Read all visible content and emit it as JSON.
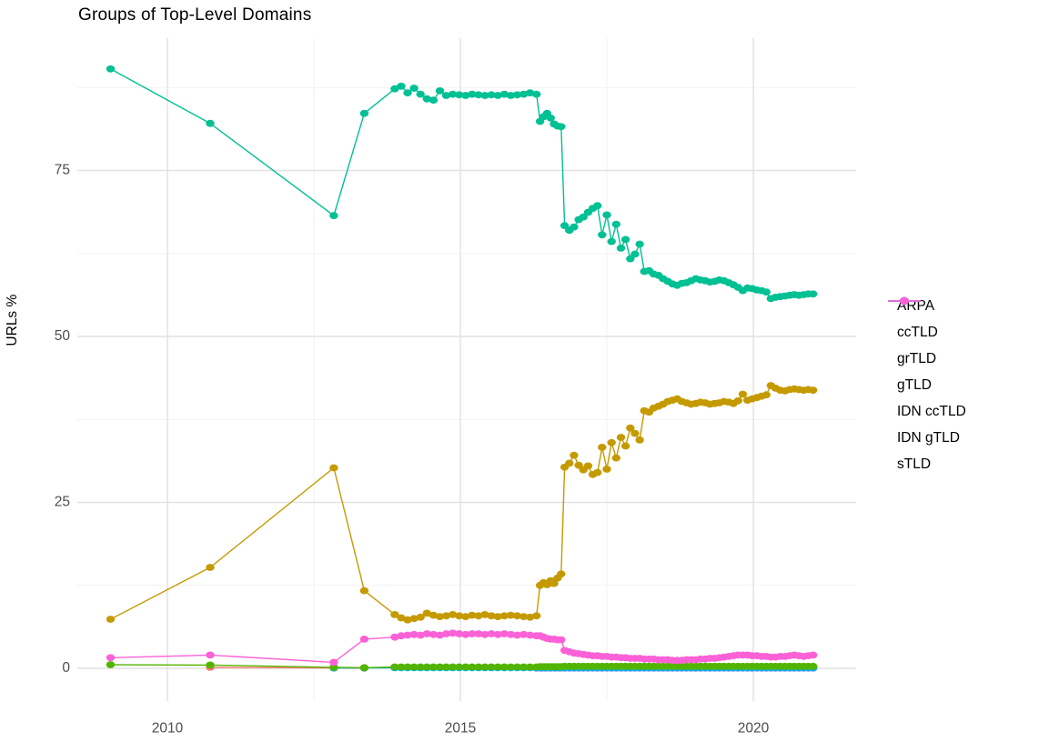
{
  "chart_data": {
    "type": "scatter",
    "title": "Groups of Top-Level Domains",
    "xlabel": "",
    "ylabel": "URLs %",
    "x_ticks": [
      "2010",
      "2015",
      "2020"
    ],
    "x_tick_values": [
      2010,
      2015,
      2020
    ],
    "x_minor_ticks": [
      2012.5,
      2017.5
    ],
    "y_ticks": [
      "0",
      "25",
      "50",
      "75"
    ],
    "y_tick_values": [
      0,
      25,
      50,
      75
    ],
    "y_minor_ticks": [
      12.5,
      37.5,
      62.5,
      87.5
    ],
    "x_range": [
      2008.5,
      2021.75
    ],
    "y_range": [
      -5,
      93.5
    ],
    "grid": true,
    "legend_position": "right",
    "series": [
      {
        "name": "ARPA",
        "slug": "arpa",
        "color": "#F8766D",
        "z": 1,
        "segments": [
          {
            "points": [
              [
                2010.73,
                0.15
              ],
              [
                2012.84,
                0.05
              ],
              [
                2013.36,
                0.03
              ]
            ]
          }
        ]
      },
      {
        "name": "ccTLD",
        "slug": "cctld",
        "color": "#C49A00",
        "z": 6,
        "segments": [
          {
            "points": [
              [
                2009.03,
                7.4
              ],
              [
                2010.73,
                15.2
              ],
              [
                2012.84,
                30.2
              ],
              [
                2013.36,
                11.7
              ]
            ]
          },
          {
            "xstart": 2013.88,
            "xstep": 0.11,
            "values": [
              8.1,
              7.6,
              7.3,
              7.5,
              7.7,
              8.3,
              8.0,
              7.8,
              7.9,
              8.1,
              7.9,
              7.8,
              8.0,
              7.9,
              8.1,
              7.9,
              7.8,
              7.9,
              8.0,
              7.9,
              7.8,
              7.7,
              7.9
            ]
          },
          {
            "xstart": 2016.36,
            "xstep": 0.06,
            "values": [
              12.5,
              12.9,
              12.6,
              13.2,
              12.8,
              13.6,
              14.2
            ]
          },
          {
            "xstart": 2016.78,
            "xstep": 0.08,
            "values": [
              30.3,
              30.9,
              32.1,
              30.6,
              29.9,
              30.5,
              29.2,
              29.5,
              33.3,
              30.0,
              34.0,
              31.7,
              34.8,
              33.5,
              36.2,
              35.4,
              34.4,
              38.8,
              38.6,
              39.2,
              39.5,
              39.8,
              40.2,
              40.4,
              40.6,
              40.2,
              40.0,
              39.8,
              39.9,
              40.1,
              40.0,
              39.8,
              39.9,
              40.0,
              40.2,
              40.1,
              39.9,
              40.3,
              41.3,
              40.4,
              40.6,
              40.8,
              41.0,
              41.2,
              42.6,
              42.2,
              41.9,
              41.8,
              42.0,
              42.1,
              42.0,
              41.9,
              42.0,
              41.9
            ]
          }
        ]
      },
      {
        "name": "grTLD",
        "slug": "grtld",
        "color": "#53B400",
        "z": 4,
        "segments": [
          {
            "points": [
              [
                2009.03,
                0.55
              ],
              [
                2010.73,
                0.5
              ],
              [
                2012.84,
                0.15
              ],
              [
                2013.36,
                0.1
              ]
            ]
          },
          {
            "xstart": 2013.88,
            "xstep": 0.11,
            "const": 0.2,
            "count": 23
          },
          {
            "xstart": 2016.36,
            "xstep": 0.06,
            "const": 0.25,
            "count": 7
          },
          {
            "xstart": 2016.78,
            "xstep": 0.08,
            "const": 0.3,
            "count": 54
          }
        ]
      },
      {
        "name": "gTLD",
        "slug": "gtld",
        "color": "#00C094",
        "z": 7,
        "segments": [
          {
            "points": [
              [
                2009.03,
                90.3
              ],
              [
                2010.73,
                82.1
              ],
              [
                2012.84,
                68.2
              ],
              [
                2013.36,
                83.6
              ]
            ]
          },
          {
            "xstart": 2013.88,
            "xstep": 0.11,
            "values": [
              87.3,
              87.7,
              86.7,
              87.4,
              86.5,
              85.8,
              85.6,
              87.0,
              86.3,
              86.5,
              86.4,
              86.3,
              86.5,
              86.4,
              86.3,
              86.4,
              86.3,
              86.5,
              86.3,
              86.4,
              86.5,
              86.7,
              86.5
            ]
          },
          {
            "xstart": 2016.36,
            "xstep": 0.06,
            "values": [
              82.4,
              83.1,
              83.6,
              82.9,
              82.0,
              81.7,
              81.6
            ]
          },
          {
            "xstart": 2016.78,
            "xstep": 0.08,
            "values": [
              66.7,
              66.0,
              66.5,
              67.6,
              68.0,
              68.7,
              69.3,
              69.7,
              65.3,
              68.3,
              64.3,
              66.9,
              63.3,
              64.6,
              61.7,
              62.4,
              63.9,
              59.8,
              59.9,
              59.4,
              59.2,
              58.7,
              58.3,
              57.9,
              57.7,
              58.0,
              58.1,
              58.4,
              58.7,
              58.5,
              58.4,
              58.2,
              58.3,
              58.5,
              58.4,
              58.1,
              57.8,
              57.4,
              56.9,
              57.3,
              57.2,
              57.0,
              56.9,
              56.7,
              55.7,
              55.9,
              56.0,
              56.1,
              56.2,
              56.3,
              56.2,
              56.3,
              56.4,
              56.4
            ]
          }
        ]
      },
      {
        "name": "IDN ccTLD",
        "slug": "idn-cctld",
        "color": "#00B6EB",
        "z": 3,
        "segments": [
          {
            "points": [
              [
                2012.84,
                0.05
              ],
              [
                2013.36,
                0.05
              ]
            ]
          },
          {
            "xstart": 2013.88,
            "xstep": 0.11,
            "const": 0.08,
            "count": 23
          },
          {
            "xstart": 2016.36,
            "xstep": 0.06,
            "const": 0.08,
            "count": 7
          },
          {
            "xstart": 2016.78,
            "xstep": 0.08,
            "const": 0.08,
            "count": 54
          }
        ]
      },
      {
        "name": "IDN gTLD",
        "slug": "idn-gtld",
        "color": "#A58AFF",
        "z": 2,
        "segments": [
          {
            "xstart": 2016.3,
            "xstep": 0.08,
            "const": 0.02,
            "count": 60
          }
        ]
      },
      {
        "name": "sTLD",
        "slug": "stld",
        "color": "#FB61D7",
        "z": 5,
        "segments": [
          {
            "points": [
              [
                2009.03,
                1.6
              ],
              [
                2010.73,
                2.0
              ],
              [
                2012.84,
                0.9
              ],
              [
                2013.36,
                4.4
              ]
            ]
          },
          {
            "xstart": 2013.88,
            "xstep": 0.11,
            "values": [
              4.7,
              4.9,
              5.0,
              5.1,
              5.0,
              5.2,
              5.1,
              5.0,
              5.2,
              5.3,
              5.2,
              5.1,
              5.2,
              5.2,
              5.1,
              5.2,
              5.1,
              5.2,
              5.1,
              5.0,
              5.1,
              5.0,
              4.9
            ]
          },
          {
            "xstart": 2016.36,
            "xstep": 0.06,
            "values": [
              4.9,
              4.7,
              4.5,
              4.4,
              4.4,
              4.3,
              4.3
            ]
          },
          {
            "xstart": 2016.78,
            "xstep": 0.08,
            "values": [
              2.7,
              2.5,
              2.3,
              2.2,
              2.1,
              2.0,
              1.9,
              1.9,
              1.8,
              1.8,
              1.7,
              1.7,
              1.6,
              1.6,
              1.5,
              1.5,
              1.5,
              1.4,
              1.4,
              1.4,
              1.3,
              1.3,
              1.3,
              1.2,
              1.2,
              1.2,
              1.3,
              1.3,
              1.3,
              1.4,
              1.4,
              1.5,
              1.5,
              1.6,
              1.7,
              1.8,
              1.9,
              2.0,
              2.0,
              2.0,
              1.9,
              1.9,
              1.8,
              1.8,
              1.7,
              1.7,
              1.8,
              1.8,
              1.9,
              2.0,
              1.9,
              1.8,
              1.9,
              2.0
            ]
          }
        ]
      }
    ],
    "style": {
      "grid_major_color": "#e2e2e2",
      "grid_minor_color": "#efefef",
      "tick_label_color": "#4d4d4d",
      "background": "#ffffff"
    }
  },
  "legend": {
    "items": [
      "ARPA",
      "ccTLD",
      "grTLD",
      "gTLD",
      "IDN ccTLD",
      "IDN gTLD",
      "sTLD"
    ]
  }
}
